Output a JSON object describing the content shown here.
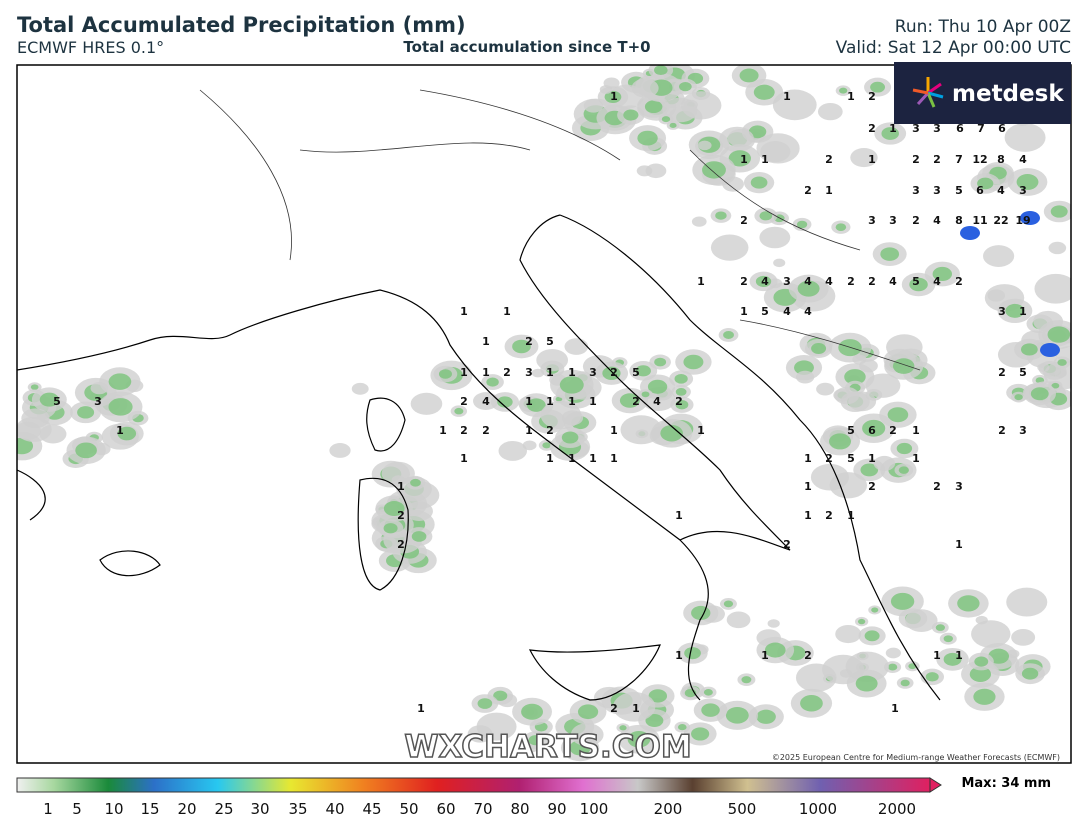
{
  "header": {
    "title": "Total Accumulated Precipitation (mm)",
    "model": "ECMWF HRES 0.1°",
    "subtitle": "Total accumulation since T+0",
    "run": "Run: Thu 10 Apr 00Z",
    "valid": "Valid: Sat 12 Apr 00:00 UTC"
  },
  "logo": "metdesk",
  "watermark": "WXCHARTS.COM",
  "copyright": "©2025 European Centre for Medium-range Weather Forecasts (ECMWF)",
  "colorbar": {
    "labels": [
      1,
      5,
      10,
      15,
      20,
      25,
      30,
      35,
      40,
      45,
      50,
      60,
      70,
      80,
      90,
      100,
      200,
      500,
      1000,
      2000
    ],
    "max": "Max: 34 mm"
  },
  "map_labels": [
    1,
    1,
    1,
    2,
    2,
    1,
    3,
    3,
    6,
    7,
    6,
    1,
    1,
    2,
    1,
    2,
    2,
    7,
    12,
    8,
    4,
    2,
    1,
    3,
    3,
    5,
    6,
    4,
    3,
    2,
    3,
    3,
    2,
    4,
    8,
    11,
    22,
    19,
    1,
    2,
    4,
    3,
    4,
    4,
    2,
    2,
    4,
    5,
    4,
    2,
    1,
    1,
    1,
    5,
    4,
    4,
    3,
    1,
    1,
    2,
    5,
    1,
    1,
    2,
    3,
    1,
    1,
    3,
    2,
    5,
    2,
    4,
    1,
    1,
    1,
    1,
    2,
    4,
    2,
    1,
    2,
    2,
    1,
    2,
    1,
    1,
    1,
    1,
    1,
    1,
    1,
    5,
    3,
    1,
    1,
    2,
    2,
    1,
    2,
    1,
    2,
    1,
    1,
    1,
    1,
    2,
    1,
    1,
    1,
    2,
    1,
    1,
    5,
    6,
    2,
    1,
    1,
    2,
    5,
    1,
    1,
    1,
    2,
    2,
    3,
    2,
    5,
    2,
    3
  ]
}
